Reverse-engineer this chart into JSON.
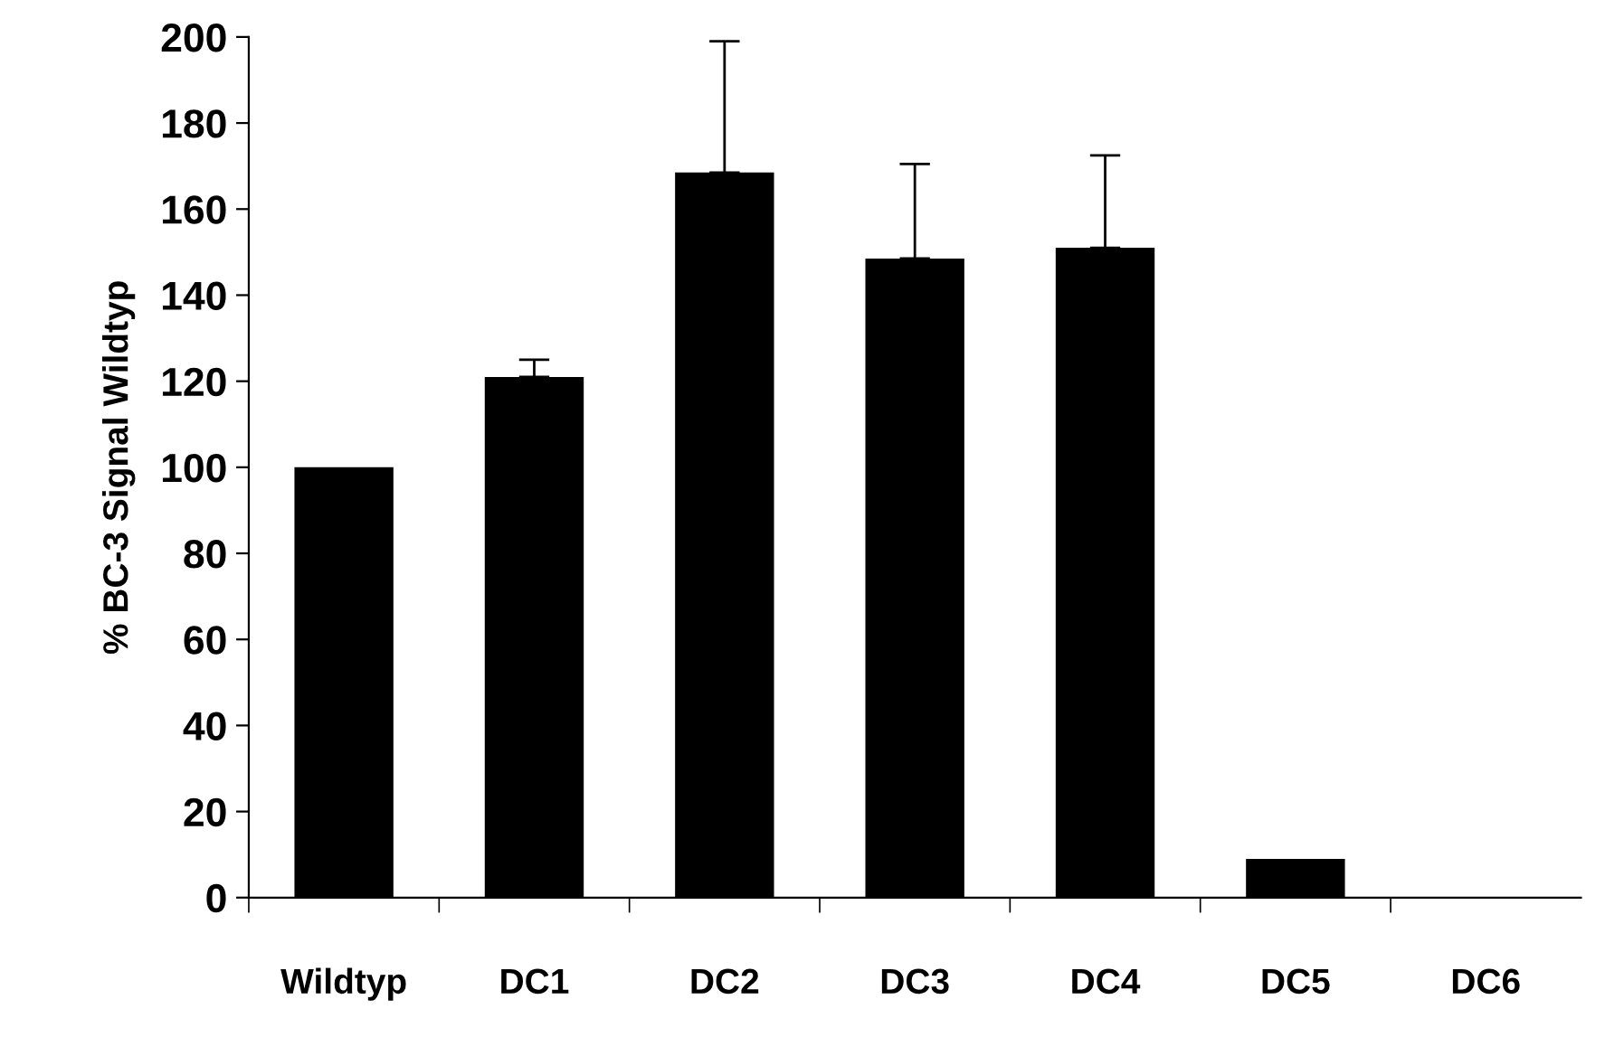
{
  "chart_data": {
    "type": "bar",
    "ylabel": "% BC-3 Signal Wildtyp",
    "categories": [
      "Wildtyp",
      "DC1",
      "DC2",
      "DC3",
      "DC4",
      "DC5",
      "DC6"
    ],
    "values": [
      100,
      121,
      168.5,
      148.5,
      151,
      9,
      0
    ],
    "errors": [
      null,
      [
        121,
        125
      ],
      [
        168.5,
        199
      ],
      [
        148.5,
        170.5
      ],
      [
        151,
        172.5
      ],
      null,
      null
    ],
    "color": "#000000",
    "ylim": [
      0,
      200
    ],
    "yticks": [
      0,
      20,
      40,
      60,
      80,
      100,
      120,
      140,
      160,
      180,
      200
    ],
    "grid": false
  }
}
